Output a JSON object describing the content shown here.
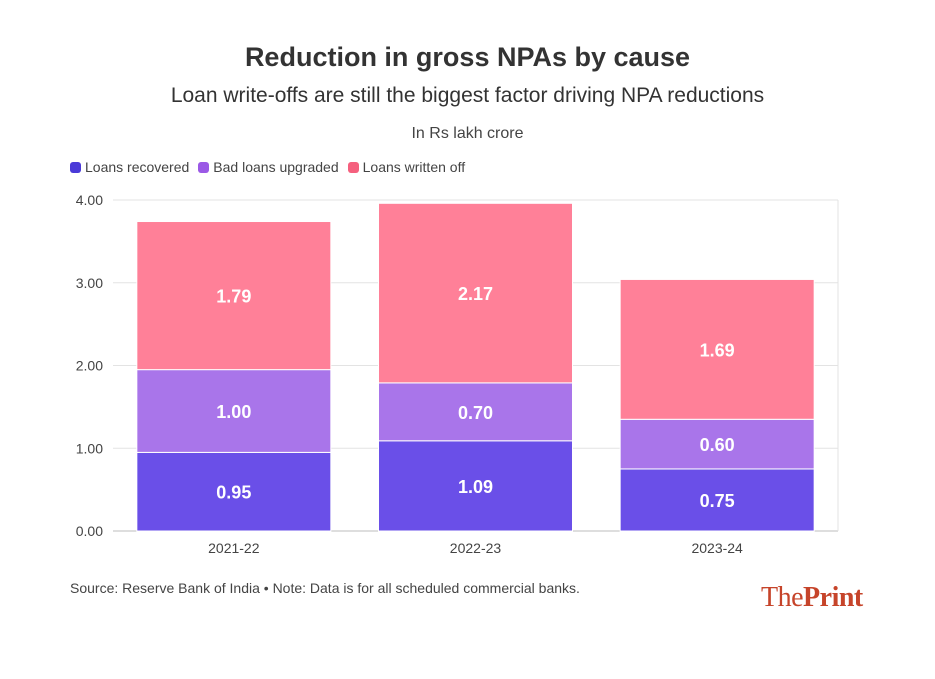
{
  "chart_data": {
    "type": "bar",
    "stacked": true,
    "title": "Reduction in gross NPAs by cause",
    "subtitle": "Loan write-offs are still the biggest factor driving NPA reductions",
    "unit_note": "In Rs lakh crore",
    "categories": [
      "2021-22",
      "2022-23",
      "2023-24"
    ],
    "series": [
      {
        "name": "Loans recovered",
        "color": "#6a4fe8",
        "values": [
          0.95,
          1.09,
          0.75
        ],
        "labels": [
          "0.95",
          "1.09",
          "0.75"
        ]
      },
      {
        "name": "Bad loans upgraded",
        "color": "#a975ea",
        "values": [
          1.0,
          0.7,
          0.6
        ],
        "labels": [
          "1.00",
          "0.70",
          "0.60"
        ]
      },
      {
        "name": "Loans written off",
        "color": "#ff8098",
        "values": [
          1.79,
          2.17,
          1.69
        ],
        "labels": [
          "1.79",
          "2.17",
          "1.69"
        ]
      }
    ],
    "legend_colors": [
      "#4a3ad8",
      "#9b59e6",
      "#f5607e"
    ],
    "ylim": [
      0,
      4
    ],
    "yticks": [
      "0.00",
      "1.00",
      "2.00",
      "3.00",
      "4.00"
    ],
    "grid": true,
    "legend": "top-left",
    "source": "Source: Reserve Bank of India • Note: Data is for all scheduled commercial banks."
  },
  "logo": {
    "the": "The",
    "print": "Print"
  }
}
